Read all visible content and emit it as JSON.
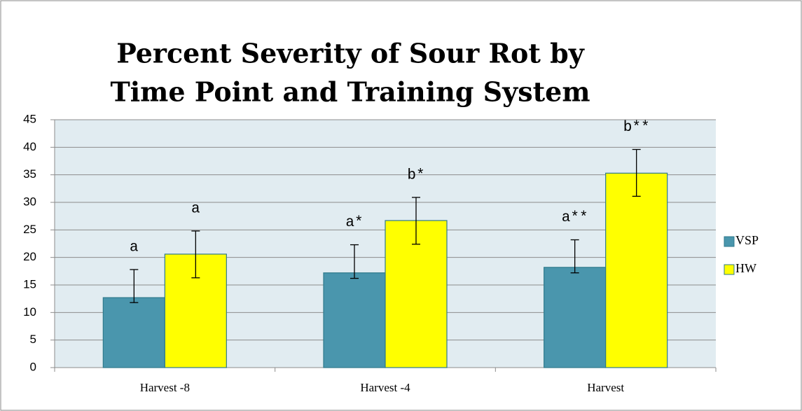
{
  "chart_data": {
    "type": "bar",
    "title": [
      "Percent Severity of Sour Rot by",
      "Time Point and Training System"
    ],
    "categories": [
      "Harvest -8",
      "Harvest -4",
      "Harvest"
    ],
    "series": [
      {
        "name": "VSP",
        "color": "#4a96ad",
        "values": [
          12.7,
          17.2,
          18.2
        ],
        "lower": [
          11.8,
          16.2,
          17.2
        ],
        "upper": [
          17.8,
          22.3,
          23.2
        ],
        "annotations": [
          "a",
          "a*",
          "a**"
        ]
      },
      {
        "name": "HW",
        "color": "#ffff00",
        "values": [
          20.6,
          26.7,
          35.3
        ],
        "lower": [
          16.3,
          22.4,
          31.1
        ],
        "upper": [
          24.8,
          30.9,
          39.6
        ],
        "annotations": [
          "a",
          "b*",
          "b**"
        ]
      }
    ],
    "ylim": [
      0,
      45
    ],
    "yticks": [
      0,
      5,
      10,
      15,
      20,
      25,
      30,
      35,
      40,
      45
    ],
    "grid": true,
    "legend": "right"
  }
}
